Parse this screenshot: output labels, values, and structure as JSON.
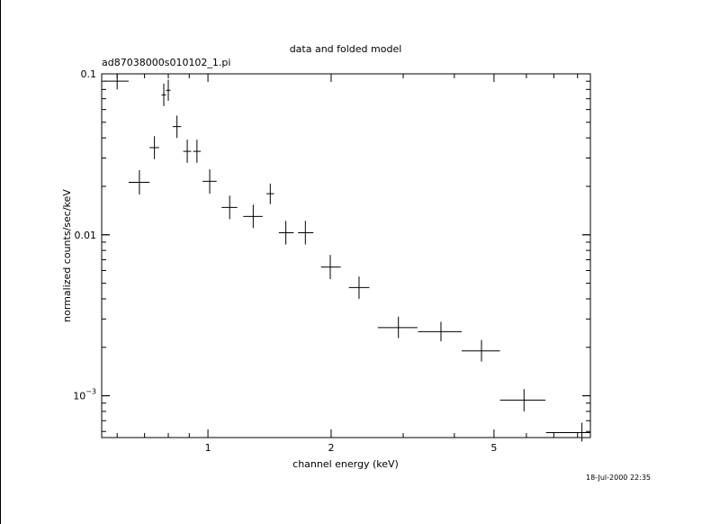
{
  "chart_data": {
    "type": "scatter",
    "title": "data and folded model",
    "subtitle": "ad87038000s010102_1.pi",
    "xlabel": "channel energy (keV)",
    "ylabel": "normalized counts/sec/keV",
    "timestamp": "18-Jul-2000 22:35",
    "x_scale": "log",
    "y_scale": "log",
    "xlim": [
      0.55,
      8.6
    ],
    "ylim": [
      0.00055,
      0.1
    ],
    "x_tick_labels": [
      "1",
      "2",
      "5"
    ],
    "y_tick_labels": [
      "0.1",
      "0.01",
      "10^-3"
    ],
    "series": [
      {
        "points": [
          {
            "x": 0.6,
            "xlo": 0.56,
            "xhi": 0.64,
            "y": 0.09,
            "ylo": 0.08,
            "yhi": 0.1
          },
          {
            "x": 0.68,
            "xlo": 0.64,
            "xhi": 0.72,
            "y": 0.0212,
            "ylo": 0.0178,
            "yhi": 0.0252
          },
          {
            "x": 0.74,
            "xlo": 0.72,
            "xhi": 0.76,
            "y": 0.0348,
            "ylo": 0.0295,
            "yhi": 0.041
          },
          {
            "x": 0.78,
            "xlo": 0.77,
            "xhi": 0.79,
            "y": 0.074,
            "ylo": 0.063,
            "yhi": 0.087
          },
          {
            "x": 0.8,
            "xlo": 0.79,
            "xhi": 0.81,
            "y": 0.079,
            "ylo": 0.068,
            "yhi": 0.092
          },
          {
            "x": 0.84,
            "xlo": 0.82,
            "xhi": 0.86,
            "y": 0.047,
            "ylo": 0.04,
            "yhi": 0.055
          },
          {
            "x": 0.89,
            "xlo": 0.87,
            "xhi": 0.91,
            "y": 0.033,
            "ylo": 0.028,
            "yhi": 0.039
          },
          {
            "x": 0.94,
            "xlo": 0.92,
            "xhi": 0.96,
            "y": 0.033,
            "ylo": 0.028,
            "yhi": 0.039
          },
          {
            "x": 1.01,
            "xlo": 0.97,
            "xhi": 1.05,
            "y": 0.0215,
            "ylo": 0.018,
            "yhi": 0.0255
          },
          {
            "x": 1.13,
            "xlo": 1.08,
            "xhi": 1.18,
            "y": 0.0148,
            "ylo": 0.0125,
            "yhi": 0.0175
          },
          {
            "x": 1.29,
            "xlo": 1.22,
            "xhi": 1.36,
            "y": 0.013,
            "ylo": 0.011,
            "yhi": 0.0154
          },
          {
            "x": 1.42,
            "xlo": 1.39,
            "xhi": 1.45,
            "y": 0.018,
            "ylo": 0.0155,
            "yhi": 0.0208
          },
          {
            "x": 1.55,
            "xlo": 1.49,
            "xhi": 1.62,
            "y": 0.0103,
            "ylo": 0.0087,
            "yhi": 0.0122
          },
          {
            "x": 1.73,
            "xlo": 1.66,
            "xhi": 1.81,
            "y": 0.0103,
            "ylo": 0.0087,
            "yhi": 0.0122
          },
          {
            "x": 1.99,
            "xlo": 1.89,
            "xhi": 2.11,
            "y": 0.0063,
            "ylo": 0.0053,
            "yhi": 0.0075
          },
          {
            "x": 2.34,
            "xlo": 2.21,
            "xhi": 2.48,
            "y": 0.0047,
            "ylo": 0.004,
            "yhi": 0.0055
          },
          {
            "x": 2.92,
            "xlo": 2.6,
            "xhi": 3.25,
            "y": 0.00265,
            "ylo": 0.00228,
            "yhi": 0.0031
          },
          {
            "x": 3.71,
            "xlo": 3.26,
            "xhi": 4.17,
            "y": 0.0025,
            "ylo": 0.00218,
            "yhi": 0.00288
          },
          {
            "x": 4.66,
            "xlo": 4.17,
            "xhi": 5.17,
            "y": 0.0019,
            "ylo": 0.00163,
            "yhi": 0.00222
          },
          {
            "x": 5.92,
            "xlo": 5.17,
            "xhi": 6.68,
            "y": 0.00094,
            "ylo": 0.0008,
            "yhi": 0.0011
          },
          {
            "x": 8.2,
            "xlo": 6.7,
            "xhi": 8.6,
            "y": 0.00059,
            "ylo": 0.00052,
            "yhi": 0.00068
          }
        ]
      }
    ]
  }
}
